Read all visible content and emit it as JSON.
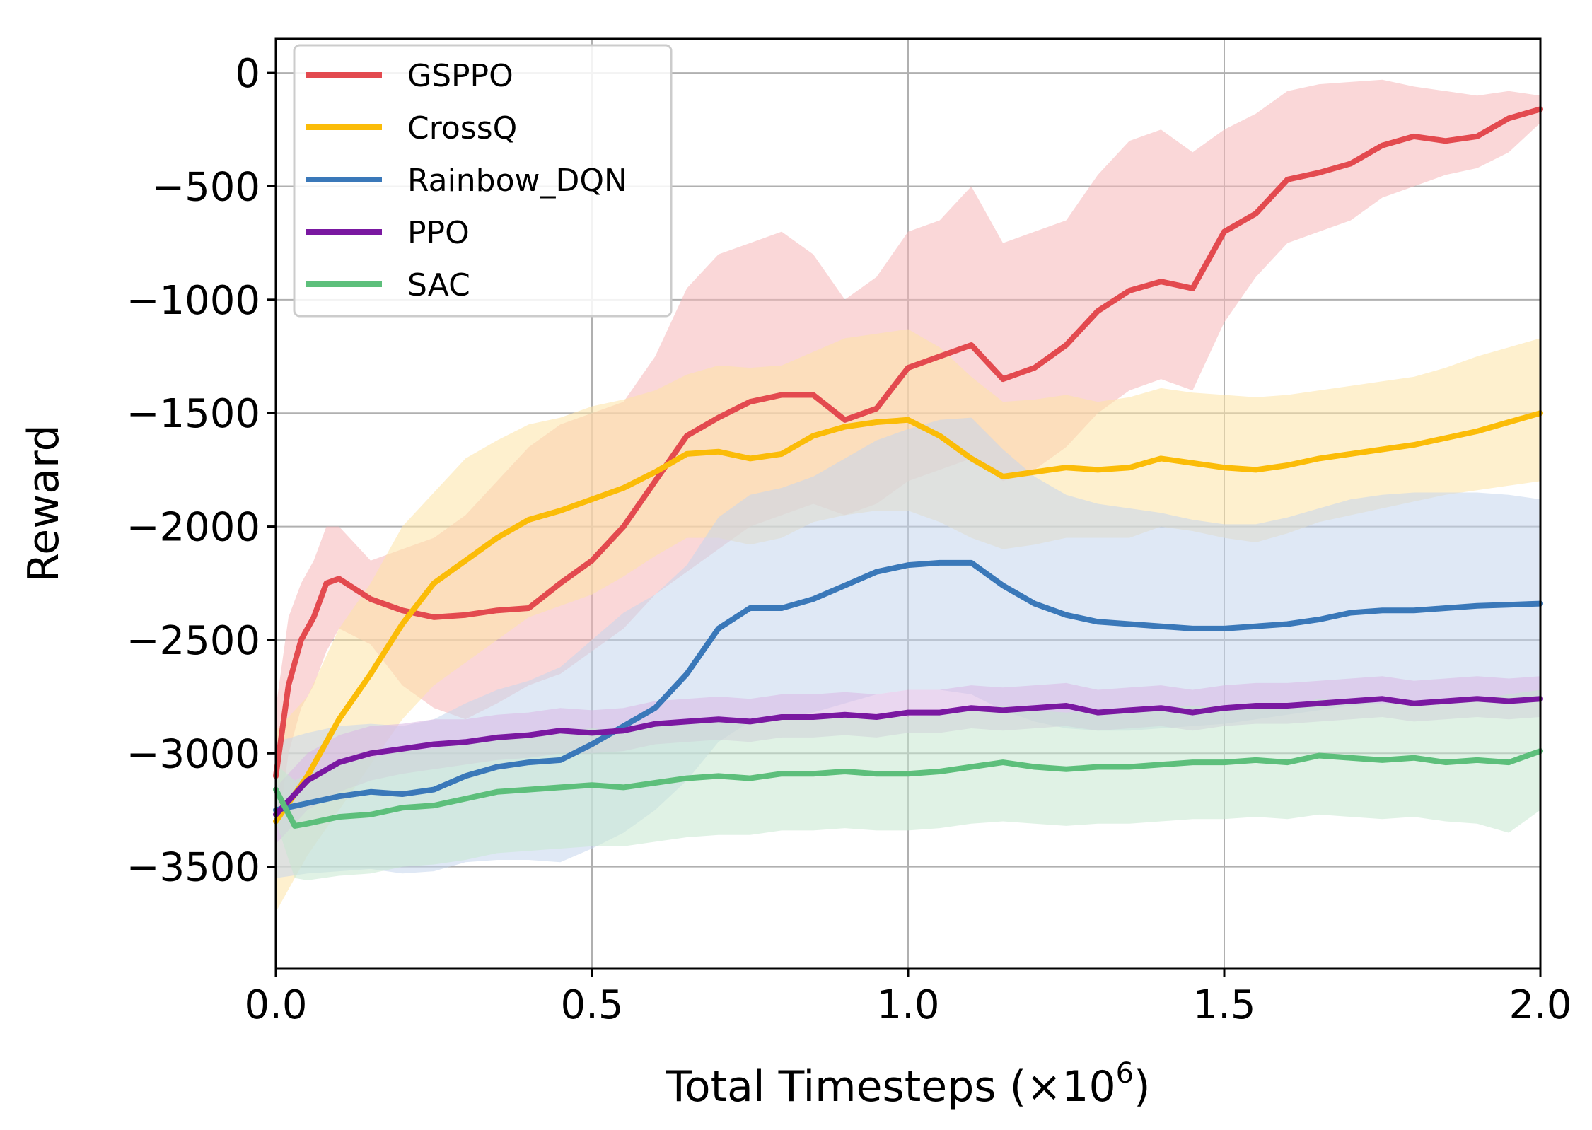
{
  "chart_data": {
    "type": "line",
    "xlabel_main": "Total Timesteps (×10",
    "xlabel_exp": "6",
    "xlabel_close": ")",
    "ylabel": "Reward",
    "xlim": [
      0,
      2.0
    ],
    "ylim": [
      -3950,
      150
    ],
    "x_ticks": [
      0.0,
      0.5,
      1.0,
      1.5,
      2.0
    ],
    "x_tick_labels": [
      "0.0",
      "0.5",
      "1.0",
      "1.5",
      "2.0"
    ],
    "y_ticks": [
      0,
      -500,
      -1000,
      -1500,
      -2000,
      -2500,
      -3000,
      -3500
    ],
    "y_tick_labels": [
      "0",
      "−500",
      "−1000",
      "−1500",
      "−2000",
      "−2500",
      "−3000",
      "−3500"
    ],
    "grid": true,
    "legend_position": "top-left",
    "series": [
      {
        "name": "GSPPO",
        "color": "#e34a4f",
        "band_color": "#f6b6b8",
        "x": [
          0.0,
          0.02,
          0.04,
          0.06,
          0.08,
          0.1,
          0.15,
          0.2,
          0.25,
          0.3,
          0.35,
          0.4,
          0.45,
          0.5,
          0.55,
          0.6,
          0.65,
          0.7,
          0.75,
          0.8,
          0.85,
          0.9,
          0.95,
          1.0,
          1.05,
          1.1,
          1.15,
          1.2,
          1.25,
          1.3,
          1.35,
          1.4,
          1.45,
          1.5,
          1.55,
          1.6,
          1.65,
          1.7,
          1.75,
          1.8,
          1.85,
          1.9,
          1.95,
          2.0
        ],
        "y": [
          -3100,
          -2700,
          -2500,
          -2400,
          -2250,
          -2230,
          -2320,
          -2370,
          -2400,
          -2390,
          -2370,
          -2360,
          -2250,
          -2150,
          -2000,
          -1800,
          -1600,
          -1520,
          -1450,
          -1420,
          -1420,
          -1530,
          -1480,
          -1300,
          -1250,
          -1200,
          -1350,
          -1300,
          -1200,
          -1050,
          -960,
          -920,
          -950,
          -700,
          -620,
          -470,
          -440,
          -400,
          -320,
          -280,
          -300,
          -280,
          -200,
          -160
        ],
        "lower": [
          -3400,
          -3000,
          -2800,
          -2700,
          -2550,
          -2450,
          -2520,
          -2700,
          -2800,
          -2850,
          -2780,
          -2700,
          -2650,
          -2550,
          -2450,
          -2300,
          -2200,
          -2100,
          -2000,
          -1950,
          -1900,
          -1950,
          -1900,
          -1800,
          -1750,
          -1700,
          -1800,
          -1750,
          -1650,
          -1500,
          -1400,
          -1350,
          -1400,
          -1100,
          -900,
          -750,
          -700,
          -650,
          -550,
          -500,
          -450,
          -420,
          -350,
          -220
        ],
        "upper": [
          -2800,
          -2400,
          -2250,
          -2150,
          -2000,
          -2000,
          -2150,
          -2100,
          -2050,
          -1950,
          -1800,
          -1650,
          -1550,
          -1500,
          -1450,
          -1250,
          -950,
          -800,
          -750,
          -700,
          -800,
          -1000,
          -900,
          -700,
          -650,
          -500,
          -750,
          -700,
          -650,
          -450,
          -300,
          -250,
          -350,
          -250,
          -180,
          -80,
          -50,
          -40,
          -30,
          -60,
          -80,
          -100,
          -80,
          -100
        ]
      },
      {
        "name": "CrossQ",
        "color": "#fbbc08",
        "band_color": "#fde3a5",
        "x": [
          0.0,
          0.05,
          0.1,
          0.15,
          0.2,
          0.25,
          0.3,
          0.35,
          0.4,
          0.45,
          0.5,
          0.55,
          0.6,
          0.65,
          0.7,
          0.75,
          0.8,
          0.85,
          0.9,
          0.95,
          1.0,
          1.05,
          1.1,
          1.15,
          1.2,
          1.25,
          1.3,
          1.35,
          1.4,
          1.45,
          1.5,
          1.55,
          1.6,
          1.65,
          1.7,
          1.75,
          1.8,
          1.85,
          1.9,
          1.95,
          2.0
        ],
        "y": [
          -3300,
          -3100,
          -2850,
          -2650,
          -2430,
          -2250,
          -2150,
          -2050,
          -1970,
          -1930,
          -1880,
          -1830,
          -1760,
          -1680,
          -1670,
          -1700,
          -1680,
          -1600,
          -1560,
          -1540,
          -1530,
          -1600,
          -1700,
          -1780,
          -1760,
          -1740,
          -1750,
          -1740,
          -1700,
          -1720,
          -1740,
          -1750,
          -1730,
          -1700,
          -1680,
          -1660,
          -1640,
          -1610,
          -1580,
          -1540,
          -1500
        ],
        "lower": [
          -3700,
          -3450,
          -3250,
          -3050,
          -2850,
          -2700,
          -2600,
          -2500,
          -2400,
          -2350,
          -2300,
          -2220,
          -2130,
          -2050,
          -2050,
          -2080,
          -2050,
          -1980,
          -1950,
          -1930,
          -1930,
          -1980,
          -2050,
          -2100,
          -2080,
          -2050,
          -2050,
          -2050,
          -2000,
          -2020,
          -2050,
          -2070,
          -2030,
          -1980,
          -1950,
          -1920,
          -1890,
          -1860,
          -1840,
          -1820,
          -1800
        ],
        "upper": [
          -2900,
          -2750,
          -2450,
          -2250,
          -2000,
          -1850,
          -1700,
          -1620,
          -1550,
          -1520,
          -1470,
          -1440,
          -1400,
          -1330,
          -1290,
          -1300,
          -1290,
          -1230,
          -1170,
          -1150,
          -1130,
          -1210,
          -1340,
          -1450,
          -1440,
          -1420,
          -1450,
          -1430,
          -1390,
          -1410,
          -1420,
          -1430,
          -1420,
          -1400,
          -1380,
          -1360,
          -1340,
          -1300,
          -1250,
          -1210,
          -1170
        ]
      },
      {
        "name": "Rainbow_DQN",
        "color": "#3a78b9",
        "band_color": "#c5d6ec",
        "x": [
          0.0,
          0.05,
          0.1,
          0.15,
          0.2,
          0.25,
          0.3,
          0.35,
          0.4,
          0.45,
          0.5,
          0.55,
          0.6,
          0.65,
          0.7,
          0.75,
          0.8,
          0.85,
          0.9,
          0.95,
          1.0,
          1.05,
          1.1,
          1.15,
          1.2,
          1.25,
          1.3,
          1.35,
          1.4,
          1.45,
          1.5,
          1.55,
          1.6,
          1.65,
          1.7,
          1.75,
          1.8,
          1.85,
          1.9,
          1.95,
          2.0
        ],
        "y": [
          -3250,
          -3220,
          -3190,
          -3170,
          -3180,
          -3160,
          -3100,
          -3060,
          -3040,
          -3030,
          -2960,
          -2880,
          -2800,
          -2650,
          -2450,
          -2360,
          -2360,
          -2320,
          -2260,
          -2200,
          -2170,
          -2160,
          -2160,
          -2260,
          -2340,
          -2390,
          -2420,
          -2430,
          -2440,
          -2450,
          -2450,
          -2440,
          -2430,
          -2410,
          -2380,
          -2370,
          -2370,
          -2360,
          -2350,
          -2345,
          -2340
        ],
        "lower": [
          -3550,
          -3530,
          -3520,
          -3510,
          -3530,
          -3520,
          -3480,
          -3470,
          -3470,
          -3480,
          -3420,
          -3350,
          -3250,
          -3120,
          -2950,
          -2860,
          -2850,
          -2820,
          -2780,
          -2740,
          -2720,
          -2720,
          -2740,
          -2810,
          -2860,
          -2890,
          -2900,
          -2900,
          -2890,
          -2880,
          -2870,
          -2850,
          -2830,
          -2810,
          -2790,
          -2780,
          -2780,
          -2770,
          -2760,
          -2760,
          -2750
        ],
        "upper": [
          -2950,
          -2910,
          -2880,
          -2870,
          -2880,
          -2850,
          -2780,
          -2720,
          -2680,
          -2620,
          -2500,
          -2380,
          -2300,
          -2170,
          -1960,
          -1860,
          -1830,
          -1780,
          -1700,
          -1620,
          -1570,
          -1530,
          -1520,
          -1660,
          -1780,
          -1860,
          -1900,
          -1920,
          -1940,
          -1970,
          -1990,
          -1990,
          -1960,
          -1920,
          -1880,
          -1860,
          -1850,
          -1850,
          -1850,
          -1860,
          -1880
        ]
      },
      {
        "name": "PPO",
        "color": "#7a18a1",
        "band_color": "#d8b7e3",
        "x": [
          0.0,
          0.05,
          0.1,
          0.15,
          0.2,
          0.25,
          0.3,
          0.35,
          0.4,
          0.45,
          0.5,
          0.55,
          0.6,
          0.65,
          0.7,
          0.75,
          0.8,
          0.85,
          0.9,
          0.95,
          1.0,
          1.05,
          1.1,
          1.15,
          1.2,
          1.25,
          1.3,
          1.35,
          1.4,
          1.45,
          1.5,
          1.55,
          1.6,
          1.65,
          1.7,
          1.75,
          1.8,
          1.85,
          1.9,
          1.95,
          2.0
        ],
        "y": [
          -3270,
          -3120,
          -3040,
          -3000,
          -2980,
          -2960,
          -2950,
          -2930,
          -2920,
          -2900,
          -2910,
          -2900,
          -2870,
          -2860,
          -2850,
          -2860,
          -2840,
          -2840,
          -2830,
          -2840,
          -2820,
          -2820,
          -2800,
          -2810,
          -2800,
          -2790,
          -2820,
          -2810,
          -2800,
          -2820,
          -2800,
          -2790,
          -2790,
          -2780,
          -2770,
          -2760,
          -2780,
          -2770,
          -2760,
          -2770,
          -2760
        ],
        "lower": [
          -3400,
          -3250,
          -3170,
          -3120,
          -3090,
          -3070,
          -3050,
          -3030,
          -3020,
          -3000,
          -3000,
          -2990,
          -2960,
          -2950,
          -2940,
          -2950,
          -2930,
          -2930,
          -2920,
          -2930,
          -2910,
          -2910,
          -2890,
          -2900,
          -2890,
          -2880,
          -2900,
          -2890,
          -2880,
          -2900,
          -2880,
          -2870,
          -2870,
          -2860,
          -2850,
          -2840,
          -2860,
          -2850,
          -2840,
          -2850,
          -2840
        ],
        "upper": [
          -3150,
          -3000,
          -2920,
          -2880,
          -2870,
          -2850,
          -2850,
          -2830,
          -2820,
          -2800,
          -2810,
          -2800,
          -2770,
          -2760,
          -2750,
          -2760,
          -2740,
          -2740,
          -2730,
          -2740,
          -2720,
          -2720,
          -2700,
          -2710,
          -2700,
          -2690,
          -2720,
          -2710,
          -2700,
          -2720,
          -2700,
          -2690,
          -2690,
          -2680,
          -2670,
          -2660,
          -2680,
          -2670,
          -2660,
          -2670,
          -2660
        ]
      },
      {
        "name": "SAC",
        "color": "#5dbf7b",
        "band_color": "#c6e8d0",
        "x": [
          0.0,
          0.03,
          0.05,
          0.1,
          0.15,
          0.2,
          0.25,
          0.3,
          0.35,
          0.4,
          0.45,
          0.5,
          0.55,
          0.6,
          0.65,
          0.7,
          0.75,
          0.8,
          0.85,
          0.9,
          0.95,
          1.0,
          1.05,
          1.1,
          1.15,
          1.2,
          1.25,
          1.3,
          1.35,
          1.4,
          1.45,
          1.5,
          1.55,
          1.6,
          1.65,
          1.7,
          1.75,
          1.8,
          1.85,
          1.9,
          1.95,
          2.0
        ],
        "y": [
          -3160,
          -3320,
          -3310,
          -3280,
          -3270,
          -3240,
          -3230,
          -3200,
          -3170,
          -3160,
          -3150,
          -3140,
          -3150,
          -3130,
          -3110,
          -3100,
          -3110,
          -3090,
          -3090,
          -3080,
          -3090,
          -3090,
          -3080,
          -3060,
          -3040,
          -3060,
          -3070,
          -3060,
          -3060,
          -3050,
          -3040,
          -3040,
          -3030,
          -3040,
          -3010,
          -3020,
          -3030,
          -3020,
          -3040,
          -3030,
          -3040,
          -2990
        ],
        "lower": [
          -3300,
          -3550,
          -3560,
          -3540,
          -3530,
          -3500,
          -3490,
          -3470,
          -3440,
          -3430,
          -3420,
          -3410,
          -3410,
          -3390,
          -3370,
          -3360,
          -3360,
          -3340,
          -3340,
          -3330,
          -3340,
          -3340,
          -3330,
          -3310,
          -3300,
          -3310,
          -3320,
          -3310,
          -3310,
          -3300,
          -3290,
          -3290,
          -3280,
          -3290,
          -3270,
          -3280,
          -3290,
          -3280,
          -3300,
          -3310,
          -3350,
          -3250
        ],
        "upper": [
          -3050,
          -3120,
          -3090,
          -3040,
          -3020,
          -2990,
          -2980,
          -2950,
          -2920,
          -2910,
          -2900,
          -2890,
          -2900,
          -2880,
          -2860,
          -2850,
          -2860,
          -2840,
          -2840,
          -2830,
          -2840,
          -2840,
          -2830,
          -2810,
          -2790,
          -2810,
          -2820,
          -2810,
          -2810,
          -2800,
          -2790,
          -2790,
          -2780,
          -2790,
          -2760,
          -2770,
          -2780,
          -2770,
          -2780,
          -2760,
          -2740,
          -2720
        ]
      }
    ]
  }
}
